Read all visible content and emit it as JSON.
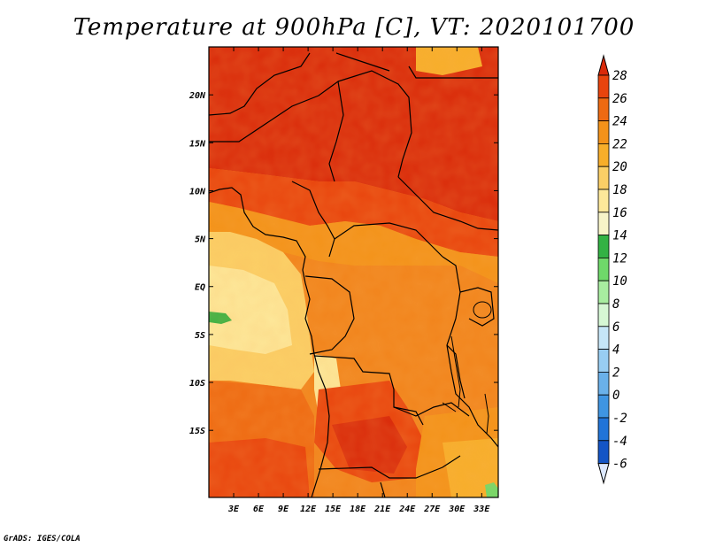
{
  "title": "Temperature at 900hPa [C], VT: 2020101700",
  "credit": "GrADS: IGES/COLA",
  "map": {
    "lon_range": [
      0,
      35
    ],
    "lat_range": [
      -22,
      25
    ],
    "lon_ticks": [
      {
        "value": 3,
        "label": "3E"
      },
      {
        "value": 6,
        "label": "6E"
      },
      {
        "value": 9,
        "label": "9E"
      },
      {
        "value": 12,
        "label": "12E"
      },
      {
        "value": 15,
        "label": "15E"
      },
      {
        "value": 18,
        "label": "18E"
      },
      {
        "value": 21,
        "label": "21E"
      },
      {
        "value": 24,
        "label": "24E"
      },
      {
        "value": 27,
        "label": "27E"
      },
      {
        "value": 30,
        "label": "30E"
      },
      {
        "value": 33,
        "label": "33E"
      }
    ],
    "lat_ticks": [
      {
        "value": 20,
        "label": "20N"
      },
      {
        "value": 15,
        "label": "15N"
      },
      {
        "value": 10,
        "label": "10N"
      },
      {
        "value": 5,
        "label": "5N"
      },
      {
        "value": 0,
        "label": "EQ"
      },
      {
        "value": -5,
        "label": "5S"
      },
      {
        "value": -10,
        "label": "10S"
      },
      {
        "value": -15,
        "label": "15S"
      }
    ]
  },
  "colorbar": {
    "levels": [
      "28",
      "26",
      "24",
      "22",
      "20",
      "18",
      "16",
      "14",
      "12",
      "10",
      "8",
      "6",
      "4",
      "2",
      "0",
      "-2",
      "-4",
      "-6"
    ],
    "colors": [
      "#d92a0a",
      "#e8440d",
      "#ee6a12",
      "#f39219",
      "#f7ae2a",
      "#fbcf66",
      "#fde89a",
      "#f7f4c8",
      "#33b244",
      "#6fd96a",
      "#a8eda0",
      "#d6f7d4",
      "#c6e6f7",
      "#98cdf2",
      "#6ab1ea",
      "#3f95e2",
      "#2174d8",
      "#1455c6",
      "#0d36a8",
      "#07188a"
    ],
    "top_color": "#d92a0a",
    "bottom_color": "#dce8ff"
  }
}
